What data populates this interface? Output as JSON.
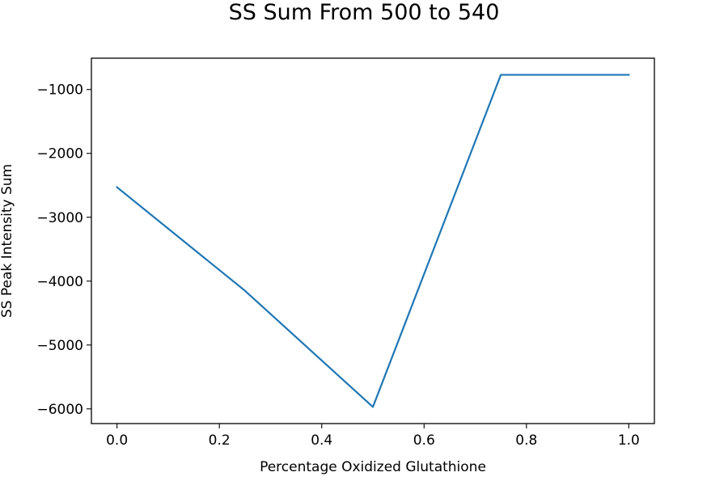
{
  "chart_data": {
    "type": "line",
    "title": "SS Sum From 500 to 540",
    "xlabel": "Percentage Oxidized Glutathione",
    "ylabel": "SS Peak Intensity Sum",
    "x": [
      0.0,
      0.25,
      0.5,
      0.75,
      1.0
    ],
    "series": [
      {
        "values": [
          -2530,
          -4150,
          -5970,
          -770,
          -770
        ],
        "color": "#1f77b4"
      }
    ],
    "xlim": [
      -0.05,
      1.05
    ],
    "ylim": [
      -6230,
      -510
    ],
    "xticks": [
      0.0,
      0.2,
      0.4,
      0.6,
      0.8,
      1.0
    ],
    "xtick_labels": [
      "0.0",
      "0.2",
      "0.4",
      "0.6",
      "0.8",
      "1.0"
    ],
    "yticks": [
      -6000,
      -5000,
      -4000,
      -3000,
      -2000,
      -1000
    ],
    "ytick_labels": [
      "−6000",
      "−5000",
      "−4000",
      "−3000",
      "−2000",
      "−1000"
    ],
    "grid": false,
    "legend": "none"
  }
}
